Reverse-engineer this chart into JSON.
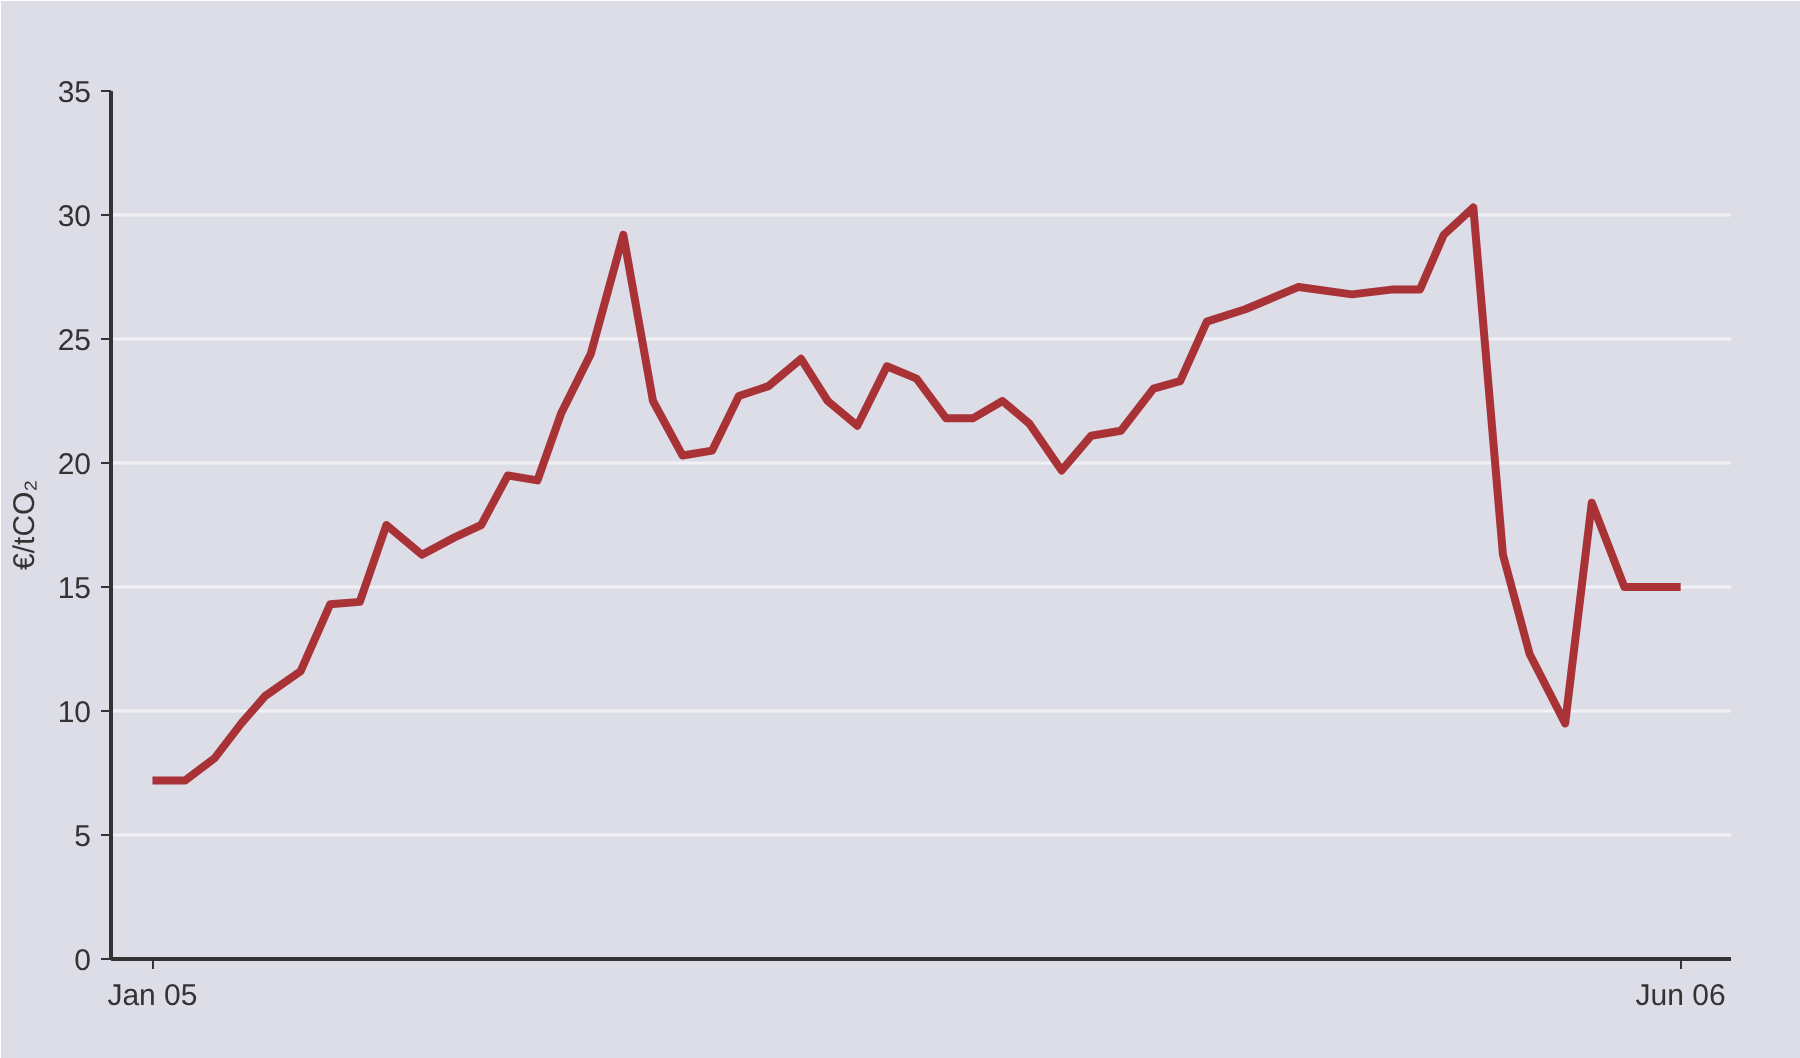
{
  "chart_data": {
    "type": "line",
    "ylabel": "€/tCO₂",
    "x": [
      "2005-01-01",
      "2005-01-12",
      "2005-01-22",
      "2005-01-31",
      "2005-02-08",
      "2005-02-20",
      "2005-03-02",
      "2005-03-12",
      "2005-03-21",
      "2005-04-02",
      "2005-04-13",
      "2005-04-22",
      "2005-05-01",
      "2005-05-11",
      "2005-05-19",
      "2005-05-29",
      "2005-06-09",
      "2005-06-19",
      "2005-06-29",
      "2005-07-09",
      "2005-07-18",
      "2005-07-28",
      "2005-08-08",
      "2005-08-17",
      "2005-08-27",
      "2005-09-06",
      "2005-09-16",
      "2005-09-26",
      "2005-10-05",
      "2005-10-15",
      "2005-10-24",
      "2005-11-04",
      "2005-11-14",
      "2005-11-24",
      "2005-12-05",
      "2005-12-14",
      "2005-12-23",
      "2006-01-05",
      "2006-01-23",
      "2006-02-10",
      "2006-02-24",
      "2006-03-05",
      "2006-03-13",
      "2006-03-23",
      "2006-04-02",
      "2006-04-11",
      "2006-04-23",
      "2006-05-02",
      "2006-05-13",
      "2006-06-01"
    ],
    "series": [
      {
        "color": "#a83236",
        "values": [
          7.2,
          7.2,
          8.1,
          9.5,
          10.6,
          11.6,
          14.3,
          14.4,
          17.5,
          16.3,
          17.0,
          17.5,
          19.5,
          19.3,
          22.0,
          24.4,
          29.2,
          22.5,
          20.3,
          20.5,
          22.7,
          23.1,
          24.2,
          22.5,
          21.5,
          23.9,
          23.4,
          21.8,
          21.8,
          22.5,
          21.6,
          19.7,
          21.1,
          21.3,
          23.0,
          23.3,
          25.7,
          26.2,
          27.1,
          26.8,
          27.0,
          27.0,
          29.2,
          30.3,
          16.3,
          12.3,
          9.5,
          18.4,
          15.0,
          15.0
        ]
      }
    ],
    "xlim": [
      "2004-12-18",
      "2006-06-18"
    ],
    "xticks": [
      {
        "value": "2005-01-01",
        "label": "Jan 05"
      },
      {
        "value": "2006-06-01",
        "label": "Jun 06"
      }
    ],
    "ylim": [
      0,
      35
    ],
    "yticks": [
      0,
      5,
      10,
      15,
      20,
      25,
      30,
      35
    ],
    "grid": "y",
    "marker": "none",
    "line_style": "solid"
  }
}
